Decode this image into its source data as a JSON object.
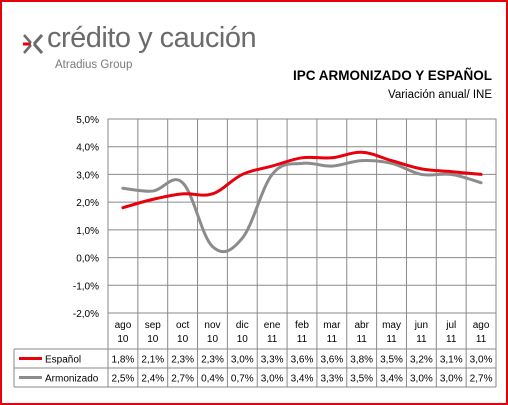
{
  "brand": {
    "name": "crédito y caución",
    "group": "Atradius Group",
    "accent": "#e8000b"
  },
  "chart_data": {
    "type": "line",
    "title": "IPC ARMONIZADO Y ESPAÑOL",
    "subtitle": "Variación anual/ INE",
    "categories": [
      [
        "ago",
        "10"
      ],
      [
        "sep",
        "10"
      ],
      [
        "oct",
        "10"
      ],
      [
        "nov",
        "10"
      ],
      [
        "dic",
        "10"
      ],
      [
        "ene",
        "11"
      ],
      [
        "feb",
        "11"
      ],
      [
        "mar",
        "11"
      ],
      [
        "abr",
        "11"
      ],
      [
        "may",
        "11"
      ],
      [
        "jun",
        "11"
      ],
      [
        "jul",
        "11"
      ],
      [
        "ago",
        "11"
      ]
    ],
    "ylim": [
      -2.0,
      5.0
    ],
    "yticks": [
      "5,0%",
      "4,0%",
      "3,0%",
      "2,0%",
      "1,0%",
      "0,0%",
      "-1,0%",
      "-2,0%"
    ],
    "grid": true,
    "series": [
      {
        "name": "Español",
        "color": "#e8000b",
        "values": [
          1.8,
          2.1,
          2.3,
          2.3,
          3.0,
          3.3,
          3.6,
          3.6,
          3.8,
          3.5,
          3.2,
          3.1,
          3.0
        ],
        "labels": [
          "1,8%",
          "2,1%",
          "2,3%",
          "2,3%",
          "3,0%",
          "3,3%",
          "3,6%",
          "3,6%",
          "3,8%",
          "3,5%",
          "3,2%",
          "3,1%",
          "3,0%"
        ]
      },
      {
        "name": "Armonizado",
        "color": "#8c8c8c",
        "values": [
          2.5,
          2.4,
          2.7,
          0.4,
          0.7,
          3.0,
          3.4,
          3.3,
          3.5,
          3.4,
          3.0,
          3.0,
          2.7
        ],
        "labels": [
          "2,5%",
          "2,4%",
          "2,7%",
          "0,4%",
          "0,7%",
          "3,0%",
          "3,4%",
          "3,3%",
          "3,5%",
          "3,4%",
          "3,0%",
          "3,0%",
          "2,7%"
        ]
      }
    ]
  }
}
